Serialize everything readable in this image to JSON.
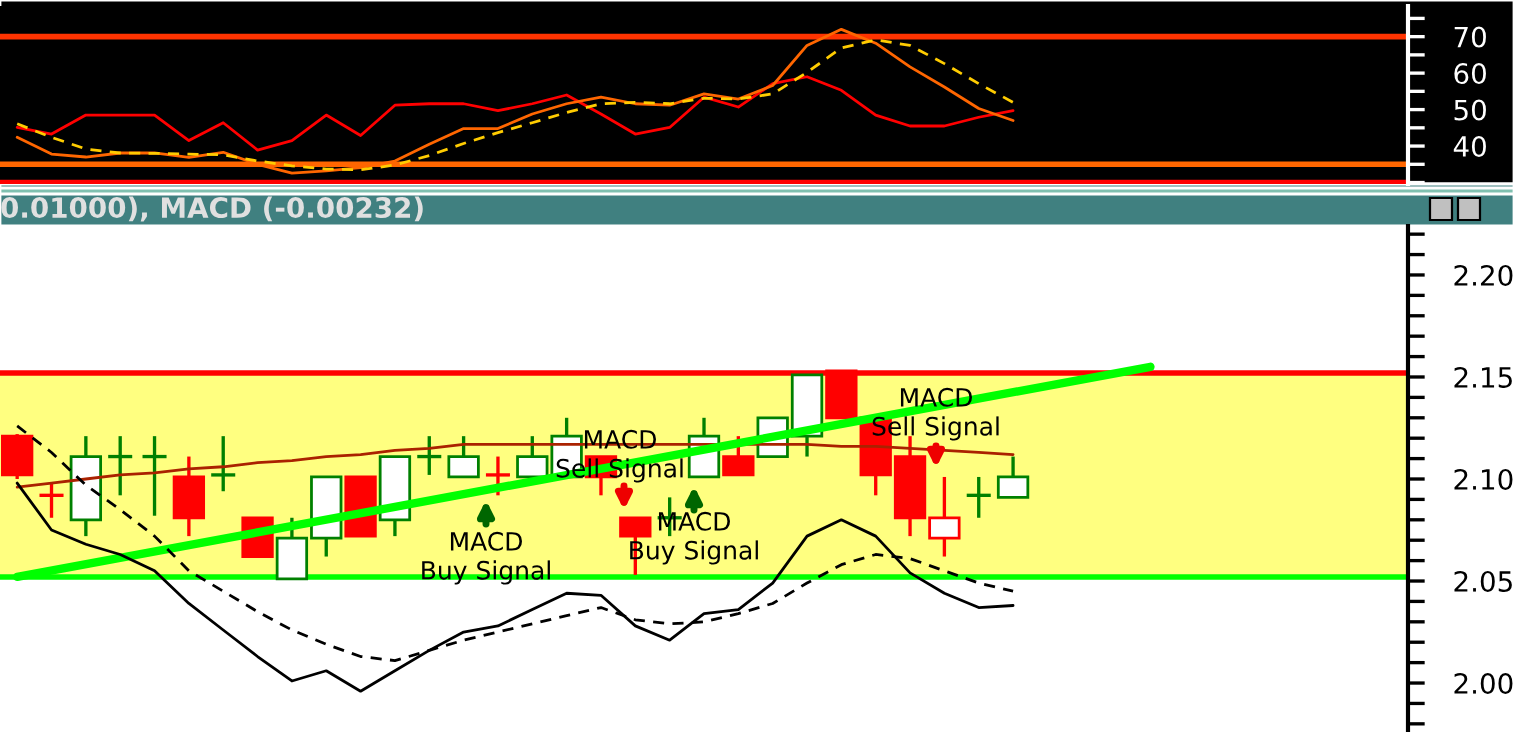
{
  "chart_data": [
    {
      "type": "line",
      "categories": [
        null,
        null,
        null,
        null,
        null,
        null,
        null,
        null,
        null,
        null,
        null,
        null,
        null,
        null,
        null,
        null,
        null,
        null,
        null,
        null,
        null,
        null,
        null,
        null,
        null,
        null,
        null,
        null,
        null,
        null,
        null,
        null,
        null,
        null,
        null,
        null,
        null,
        null,
        null,
        null,
        null
      ],
      "series": [
        {
          "color": "#ff0000",
          "values": [
            45.1,
            43.3,
            48.5,
            48.5,
            48.5,
            41.5,
            46.4,
            38.9,
            41.5,
            48.5,
            42.9,
            51.2,
            51.6,
            51.6,
            49.7,
            51.6,
            54.0,
            48.8,
            43.3,
            45.1,
            53.4,
            50.7,
            57.1,
            59.0,
            55.3,
            48.5,
            45.5,
            45.5,
            47.9,
            49.7,
            null,
            null,
            null,
            null,
            null,
            null,
            null,
            null,
            null,
            null,
            null
          ]
        },
        {
          "color": "#ff6600",
          "values": [
            42.4,
            37.8,
            37.0,
            38.1,
            38.1,
            36.9,
            38.3,
            35.0,
            32.6,
            33.2,
            34.1,
            35.9,
            40.5,
            44.8,
            44.8,
            48.8,
            51.6,
            53.4,
            51.6,
            51.2,
            54.3,
            52.9,
            56.6,
            67.6,
            72.0,
            68.2,
            61.7,
            56.2,
            50.3,
            47.0,
            null,
            null,
            null,
            null,
            null,
            null,
            null,
            null,
            null,
            null,
            null
          ]
        },
        {
          "color": "#ffcc00",
          "line_style": "dashed",
          "values": [
            46.1,
            42.4,
            39.2,
            38.1,
            38.0,
            37.8,
            37.6,
            35.9,
            34.6,
            33.7,
            33.5,
            34.8,
            37.4,
            40.7,
            43.7,
            46.4,
            49.2,
            51.6,
            52.0,
            51.6,
            53.1,
            52.9,
            54.3,
            60.2,
            66.9,
            69.1,
            67.6,
            62.6,
            57.1,
            52.0,
            null,
            null,
            null,
            null,
            null,
            null,
            null,
            null,
            null,
            null,
            null
          ]
        }
      ],
      "ylim": [
        29.6,
        78.4
      ],
      "yticks": [
        {
          "value": 30,
          "label": null
        },
        {
          "value": 35,
          "label": null
        },
        40,
        {
          "value": 45,
          "label": null
        },
        50,
        {
          "value": 55,
          "label": null
        },
        60,
        {
          "value": 65,
          "label": null
        },
        70,
        {
          "value": 75,
          "label": null
        }
      ],
      "ref_lines": [
        {
          "axis": "y",
          "value": 70,
          "color": "#ff3300"
        },
        {
          "axis": "y",
          "value": 35,
          "color": "#ff6600"
        },
        {
          "axis": "y",
          "value": 30,
          "color": "#ff0000"
        }
      ],
      "tick_labels": "y"
    },
    {
      "type": "candlestick",
      "title": "0.01000), MACD (-0.00232)",
      "categories": [
        null,
        null,
        null,
        null,
        null,
        null,
        null,
        null,
        null,
        null,
        null,
        null,
        null,
        null,
        null,
        null,
        null,
        null,
        null,
        null,
        null,
        null,
        null,
        null,
        null,
        null,
        null,
        null,
        null,
        null,
        null,
        null,
        null,
        null,
        null,
        null,
        null,
        null,
        null,
        null,
        null
      ],
      "ohlc": [
        [
          2.121,
          2.122,
          2.1,
          2.102
        ],
        [
          2.092,
          2.098,
          2.081,
          2.092
        ],
        [
          2.08,
          2.121,
          2.072,
          2.111
        ],
        [
          2.111,
          2.121,
          2.092,
          2.111
        ],
        [
          2.111,
          2.121,
          2.082,
          2.111
        ],
        [
          2.101,
          2.111,
          2.072,
          2.081
        ],
        [
          2.102,
          2.121,
          2.094,
          2.102
        ],
        [
          2.081,
          2.081,
          2.062,
          2.062
        ],
        [
          2.051,
          2.081,
          2.051,
          2.071
        ],
        [
          2.071,
          2.101,
          2.062,
          2.101
        ],
        [
          2.101,
          2.101,
          2.072,
          2.072
        ],
        [
          2.08,
          2.111,
          2.072,
          2.111
        ],
        [
          2.111,
          2.121,
          2.102,
          2.111
        ],
        [
          2.101,
          2.121,
          2.101,
          2.111
        ],
        [
          2.102,
          2.111,
          2.092,
          2.102
        ],
        [
          2.101,
          2.121,
          2.101,
          2.111
        ],
        [
          2.101,
          2.13,
          2.101,
          2.121
        ],
        [
          2.111,
          2.111,
          2.092,
          2.101
        ],
        [
          2.081,
          2.081,
          2.053,
          2.072
        ],
        [
          2.081,
          2.091,
          2.072,
          2.081
        ],
        [
          2.101,
          2.13,
          2.101,
          2.121
        ],
        [
          2.111,
          2.121,
          2.102,
          2.102
        ],
        [
          2.111,
          2.13,
          2.111,
          2.13
        ],
        [
          2.121,
          2.151,
          2.111,
          2.151
        ],
        [
          2.153,
          2.153,
          2.13,
          2.13
        ],
        [
          2.13,
          2.13,
          2.092,
          2.102
        ],
        [
          2.111,
          2.121,
          2.072,
          2.081
        ],
        [
          2.071,
          2.101,
          2.062,
          2.081
        ],
        [
          2.092,
          2.101,
          2.081,
          2.092
        ],
        [
          2.091,
          2.111,
          2.091,
          2.101
        ],
        null,
        null,
        null,
        null,
        null,
        null,
        null,
        null,
        null,
        null,
        null
      ],
      "colors": [
        "#ff0000",
        "#ff0000",
        "#008000",
        "#008000",
        "#008000",
        "#ff0000",
        "#008000",
        "#ff0000",
        "#008000",
        "#008000",
        "#ff0000",
        "#008000",
        "#008000",
        "#008000",
        "#ff0000",
        "#008000",
        "#008000",
        "#ff0000",
        "#ff0000",
        "#008000",
        "#008000",
        "#ff0000",
        "#008000",
        "#008000",
        "#ff0000",
        "#ff0000",
        "#ff0000",
        "#ff0000",
        "#008000",
        "#008000",
        null,
        null,
        null,
        null,
        null,
        null,
        null,
        null,
        null,
        null,
        null
      ],
      "series": [
        {
          "type": "line",
          "color": "#aa2200",
          "values": [
            2.096,
            2.098,
            2.1,
            2.102,
            2.103,
            2.105,
            2.106,
            2.108,
            2.109,
            2.111,
            2.112,
            2.114,
            2.115,
            2.117,
            2.117,
            2.117,
            2.117,
            2.117,
            2.117,
            2.117,
            2.117,
            2.117,
            2.117,
            2.117,
            2.116,
            2.116,
            2.115,
            2.114,
            2.113,
            2.112,
            null,
            null,
            null,
            null,
            null,
            null,
            null,
            null,
            null,
            null,
            null
          ]
        },
        {
          "type": "line",
          "color": "#00ff00",
          "values": [
            2.052,
            null,
            null,
            null,
            null,
            null,
            null,
            null,
            null,
            null,
            null,
            null,
            null,
            null,
            null,
            null,
            null,
            null,
            null,
            null,
            null,
            null,
            null,
            null,
            null,
            null,
            null,
            null,
            null,
            null,
            null,
            null,
            null,
            2.155,
            null,
            null,
            null,
            null,
            null,
            null,
            null
          ]
        },
        {
          "type": "line",
          "color": "#000000",
          "values": [
            2.098,
            2.075,
            2.068,
            2.063,
            2.055,
            2.039,
            2.026,
            2.013,
            2.001,
            2.006,
            1.996,
            2.006,
            2.016,
            2.025,
            2.028,
            2.036,
            2.044,
            2.043,
            2.028,
            2.021,
            2.034,
            2.036,
            2.049,
            2.072,
            2.08,
            2.072,
            2.054,
            2.044,
            2.037,
            2.038,
            null,
            null,
            null,
            null,
            null,
            null,
            null,
            null,
            null,
            null,
            null
          ]
        },
        {
          "type": "line",
          "color": "#000000",
          "line_style": "dashed",
          "values": [
            2.126,
            2.113,
            2.097,
            2.085,
            2.072,
            2.055,
            2.045,
            2.035,
            2.026,
            2.019,
            2.013,
            2.011,
            2.016,
            2.021,
            2.025,
            2.029,
            2.033,
            2.037,
            2.031,
            2.029,
            2.03,
            2.034,
            2.039,
            2.049,
            2.058,
            2.063,
            2.061,
            2.055,
            2.049,
            2.045,
            null,
            null,
            null,
            null,
            null,
            null,
            null,
            null,
            null,
            null,
            null
          ]
        }
      ],
      "ylim": [
        1.976,
        2.224
      ],
      "yticks": [
        {
          "value": 1.98,
          "label": null
        },
        {
          "value": 1.99,
          "label": null
        },
        {
          "value": 2.0,
          "label": "2.00"
        },
        {
          "value": 2.01,
          "label": null
        },
        {
          "value": 2.02,
          "label": null
        },
        {
          "value": 2.03,
          "label": null
        },
        {
          "value": 2.04,
          "label": null
        },
        {
          "value": 2.05,
          "label": "2.05"
        },
        {
          "value": 2.06,
          "label": null
        },
        {
          "value": 2.07,
          "label": null
        },
        {
          "value": 2.08,
          "label": null
        },
        {
          "value": 2.09,
          "label": null
        },
        {
          "value": 2.1,
          "label": "2.10"
        },
        {
          "value": 2.11,
          "label": null
        },
        {
          "value": 2.12,
          "label": null
        },
        {
          "value": 2.13,
          "label": null
        },
        {
          "value": 2.14,
          "label": null
        },
        {
          "value": 2.15,
          "label": "2.15"
        },
        {
          "value": 2.16,
          "label": null
        },
        {
          "value": 2.17,
          "label": null
        },
        {
          "value": 2.18,
          "label": null
        },
        {
          "value": 2.19,
          "label": null
        },
        {
          "value": 2.2,
          "label": "2.20"
        },
        {
          "value": 2.21,
          "label": null
        },
        {
          "value": 2.22,
          "label": null
        }
      ],
      "bands": [
        {
          "axis": "y",
          "from": 2.052,
          "to": 2.152,
          "color": "#ffff80"
        }
      ],
      "ref_lines": [
        {
          "axis": "y",
          "value": 2.152,
          "color": "#ff0000"
        },
        {
          "axis": "y",
          "value": 2.052,
          "color": "#00ff00"
        }
      ],
      "annotations": [
        "MACD\nBuy Signal",
        "MACD\nSell Signal",
        "MACD\nBuy Signal",
        "MACD\nSell Signal"
      ],
      "tick_labels": "y"
    }
  ]
}
